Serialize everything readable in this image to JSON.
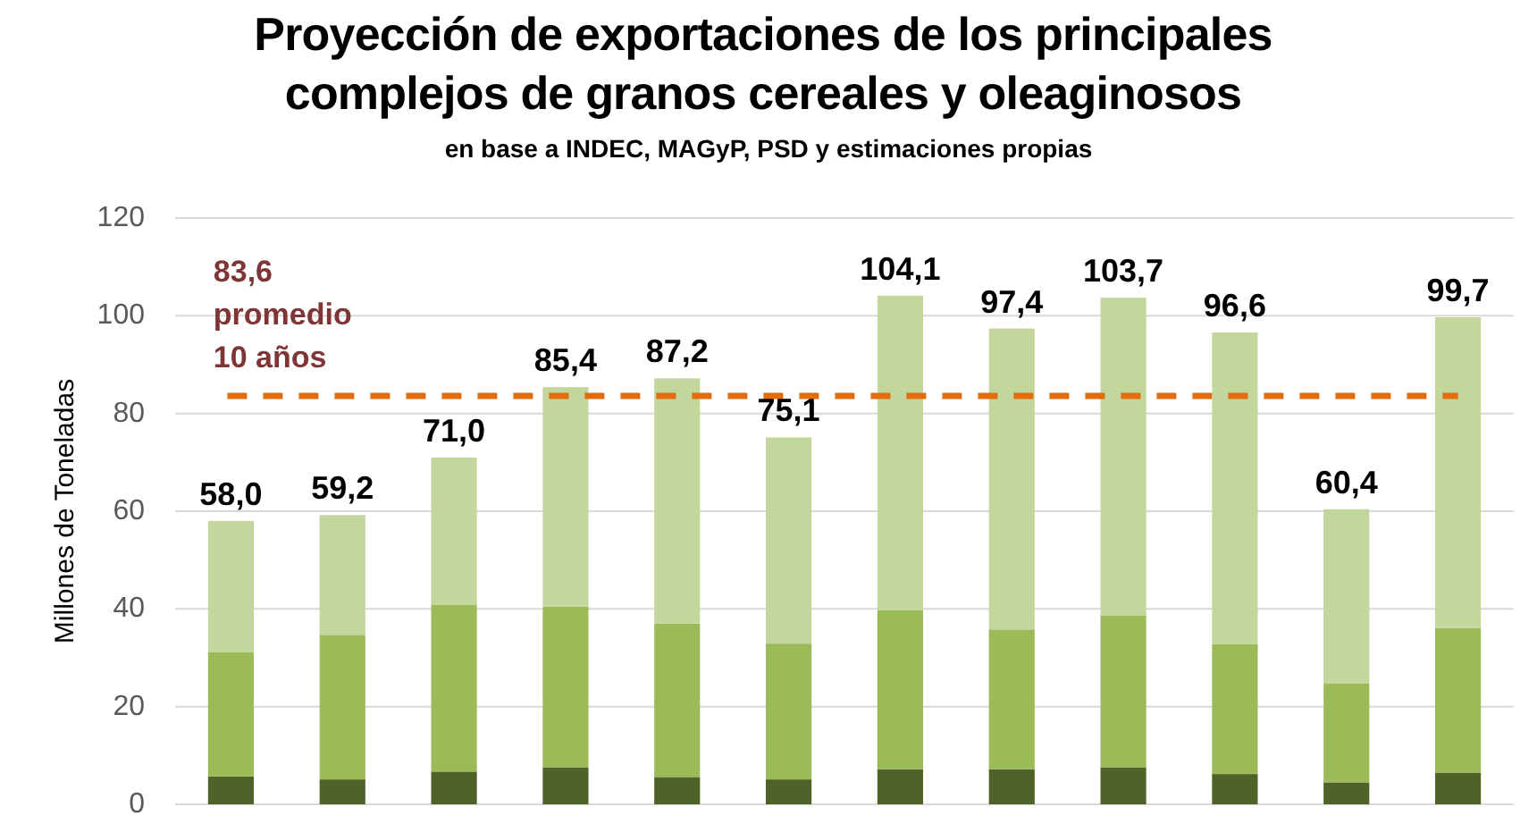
{
  "chart_data": {
    "type": "bar",
    "title": "Proyección de exportaciones de los principales complejos de granos cereales y oleaginosos",
    "subtitle": "en base a INDEC, MAGyP, PSD y estimaciones propias",
    "ylabel": "Millones de Toneladas",
    "categories": [
      null,
      null,
      null,
      null,
      null,
      null,
      null,
      null,
      null,
      null,
      null,
      null
    ],
    "stacked": true,
    "series": [
      {
        "color": "#4f6228",
        "values": [
          5.7,
          5.1,
          6.7,
          7.6,
          5.6,
          5.1,
          7.2,
          7.2,
          7.6,
          6.2,
          4.5,
          6.5
        ]
      },
      {
        "color": "#9bbb59",
        "values": [
          25.4,
          29.6,
          34.2,
          32.9,
          31.4,
          27.8,
          32.5,
          28.6,
          31.0,
          26.6,
          20.2,
          29.6
        ]
      },
      {
        "color": "#c3d69b",
        "values": [
          26.9,
          24.5,
          30.1,
          44.9,
          50.2,
          42.2,
          64.4,
          61.6,
          65.1,
          63.8,
          35.7,
          63.6
        ]
      }
    ],
    "totals": [
      "58,0",
      "59,2",
      "71,0",
      "85,4",
      "87,2",
      "75,1",
      "104,1",
      "97,4",
      "103,7",
      "96,6",
      "60,4",
      "99,7"
    ],
    "ylim": [
      0,
      120
    ],
    "yticks": [
      0,
      20,
      40,
      60,
      80,
      100,
      120
    ],
    "grid": "y",
    "ref_lines": [
      {
        "axis": "y",
        "value": 83.6,
        "label": "83,6 promedio 10 años",
        "color": "#e46c0a",
        "line_style": "dashed"
      }
    ]
  }
}
